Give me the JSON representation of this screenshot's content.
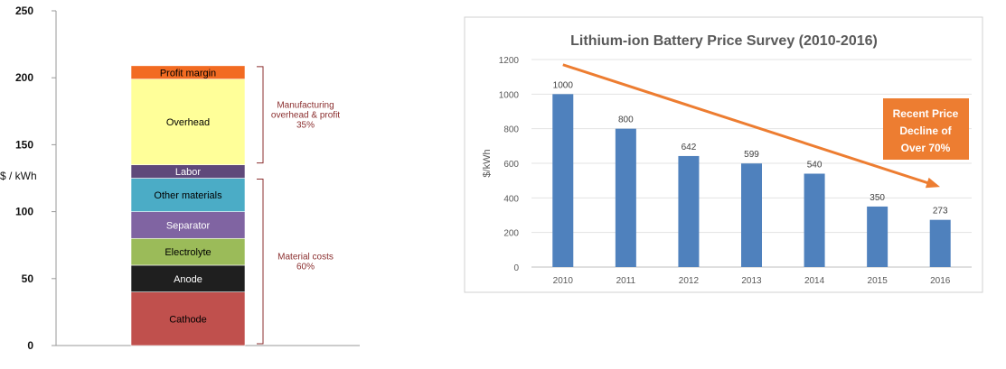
{
  "chart_data": [
    {
      "type": "bar",
      "stacked": true,
      "ylabel": "$ / kWh",
      "ylim": [
        0,
        250
      ],
      "yticks": [
        0,
        50,
        100,
        150,
        200,
        250
      ],
      "grid": false,
      "segments": [
        {
          "name": "Cathode",
          "value": 40,
          "color": "#c0504d",
          "text_color": "#000000"
        },
        {
          "name": "Anode",
          "value": 20,
          "color": "#1f1f1f",
          "text_color": "#ffffff"
        },
        {
          "name": "Electrolyte",
          "value": 20,
          "color": "#9bbb59",
          "text_color": "#000000"
        },
        {
          "name": "Separator",
          "value": 20,
          "color": "#8064a2",
          "text_color": "#ffffff"
        },
        {
          "name": "Other materials",
          "value": 25,
          "color": "#4bacc6",
          "text_color": "#000000"
        },
        {
          "name": "Labor",
          "value": 10,
          "color": "#5f497a",
          "text_color": "#ffffff"
        },
        {
          "name": "Overhead",
          "value": 64,
          "color": "#ffff99",
          "text_color": "#000000"
        },
        {
          "name": "Profit margin",
          "value": 10,
          "color": "#f26b22",
          "text_color": "#000000"
        }
      ],
      "annotations": [
        {
          "lines": [
            "Manufacturing",
            "overhead & profit",
            "35%"
          ],
          "from": 135,
          "to": 209,
          "color": "#8b2f2f"
        },
        {
          "lines": [
            "Material costs",
            "60%"
          ],
          "from": 0,
          "to": 125,
          "color": "#8b2f2f"
        }
      ]
    },
    {
      "type": "bar",
      "title": "Lithium-ion Battery Price Survey (2010-2016)",
      "ylabel": "$/kWh",
      "ylim": [
        0,
        1200
      ],
      "yticks": [
        0,
        200,
        400,
        600,
        800,
        1000,
        1200
      ],
      "grid": true,
      "categories": [
        "2010",
        "2011",
        "2012",
        "2013",
        "2014",
        "2015",
        "2016"
      ],
      "values": [
        1000,
        800,
        642,
        599,
        540,
        350,
        273
      ],
      "bar_color": "#4f81bd",
      "trend_arrow": {
        "from_value": 1170,
        "to_value": 470,
        "color": "#ed7d31"
      },
      "callout": {
        "lines": [
          "Recent Price",
          "Decline of",
          "Over 70%"
        ],
        "color": "#ed7d31",
        "text_color": "#ffffff"
      }
    }
  ]
}
